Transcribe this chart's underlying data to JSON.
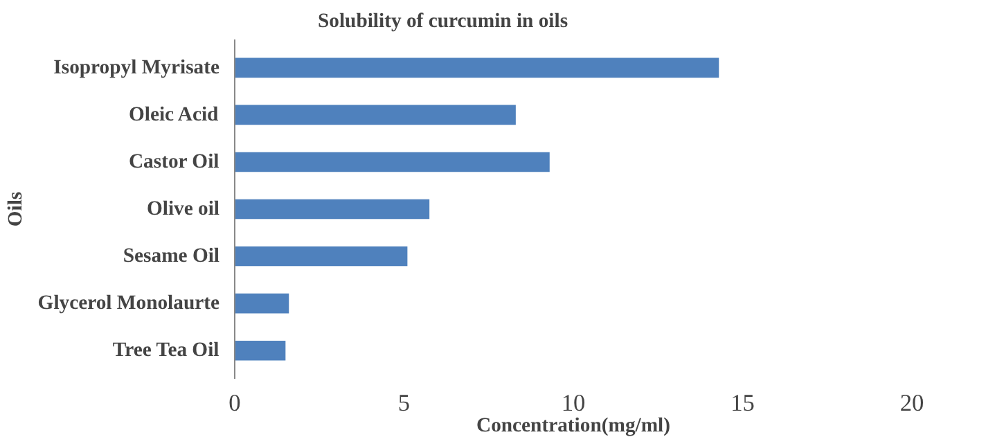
{
  "chart_data": {
    "type": "bar",
    "orientation": "horizontal",
    "title": "Solubility of curcumin in oils",
    "xlabel": "Concentration(mg/ml)",
    "ylabel": "Oils",
    "categories": [
      "Isopropyl Myrisate",
      "Oleic Acid",
      "Castor Oil",
      "Olive oil",
      "Sesame Oil",
      "Glycerol Monolaurte",
      "Tree Tea Oil"
    ],
    "values": [
      14.3,
      8.3,
      9.3,
      5.75,
      5.1,
      1.6,
      1.5
    ],
    "color": "#4f81bd",
    "xlim": [
      0,
      20
    ],
    "xticks": [
      0,
      5,
      10,
      15,
      20
    ],
    "grid": false
  }
}
